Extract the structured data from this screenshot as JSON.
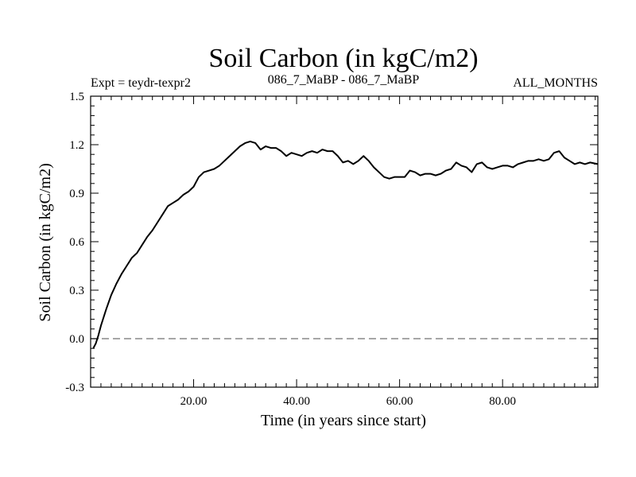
{
  "chart_data": {
    "type": "line",
    "title": "Soil Carbon (in kgC/m2)",
    "subtitle_left": "Expt = teydr-texpr2",
    "subtitle_center": "086_7_MaBP - 086_7_MaBP",
    "subtitle_right": "ALL_MONTHS",
    "xlabel": "Time (in years since start)",
    "ylabel": "Soil Carbon (in kgC/m2)",
    "xlim": [
      0,
      98.5
    ],
    "ylim": [
      -0.3,
      1.5
    ],
    "x_ticks": [
      20,
      40,
      60,
      80
    ],
    "x_tick_labels": [
      "20.00",
      "40.00",
      "60.00",
      "80.00"
    ],
    "y_ticks": [
      -0.3,
      0.0,
      0.3,
      0.6,
      0.9,
      1.2,
      1.5
    ],
    "y_tick_labels": [
      "-0.3",
      "0.0",
      "0.3",
      "0.6",
      "0.9",
      "1.2",
      "1.5"
    ],
    "reference_line": {
      "y": 0.0,
      "style": "dashed",
      "color": "#888888"
    },
    "series": [
      {
        "name": "Soil Carbon",
        "color": "#000000",
        "x": [
          0.5,
          1,
          1.5,
          2,
          3,
          4,
          5,
          6,
          7,
          8,
          9,
          10,
          11,
          12,
          13,
          14,
          15,
          16,
          17,
          18,
          19,
          20,
          21,
          22,
          23,
          24,
          25,
          26,
          27,
          28,
          29,
          30,
          31,
          32,
          33,
          34,
          35,
          36,
          37,
          38,
          39,
          40,
          41,
          42,
          43,
          44,
          45,
          46,
          47,
          48,
          49,
          50,
          51,
          52,
          53,
          54,
          55,
          56,
          57,
          58,
          59,
          60,
          61,
          62,
          63,
          64,
          65,
          66,
          67,
          68,
          69,
          70,
          71,
          72,
          73,
          74,
          75,
          76,
          77,
          78,
          79,
          80,
          81,
          82,
          83,
          84,
          85,
          86,
          87,
          88,
          89,
          90,
          91,
          92,
          93,
          94,
          95,
          96,
          97,
          98.5
        ],
        "y": [
          -0.06,
          -0.03,
          0.02,
          0.08,
          0.18,
          0.27,
          0.34,
          0.4,
          0.45,
          0.5,
          0.53,
          0.58,
          0.63,
          0.67,
          0.72,
          0.77,
          0.82,
          0.84,
          0.86,
          0.89,
          0.91,
          0.94,
          1.0,
          1.03,
          1.04,
          1.05,
          1.07,
          1.1,
          1.13,
          1.16,
          1.19,
          1.21,
          1.22,
          1.21,
          1.17,
          1.19,
          1.18,
          1.18,
          1.16,
          1.13,
          1.15,
          1.14,
          1.13,
          1.15,
          1.16,
          1.15,
          1.17,
          1.16,
          1.16,
          1.13,
          1.09,
          1.1,
          1.08,
          1.1,
          1.13,
          1.1,
          1.06,
          1.03,
          1.0,
          0.99,
          1.0,
          1.0,
          1.0,
          1.04,
          1.03,
          1.01,
          1.02,
          1.02,
          1.01,
          1.02,
          1.04,
          1.05,
          1.09,
          1.07,
          1.06,
          1.03,
          1.08,
          1.09,
          1.06,
          1.05,
          1.06,
          1.07,
          1.07,
          1.06,
          1.08,
          1.09,
          1.1,
          1.1,
          1.11,
          1.1,
          1.11,
          1.15,
          1.16,
          1.12,
          1.1,
          1.08,
          1.09,
          1.08,
          1.09,
          1.08
        ]
      }
    ]
  }
}
